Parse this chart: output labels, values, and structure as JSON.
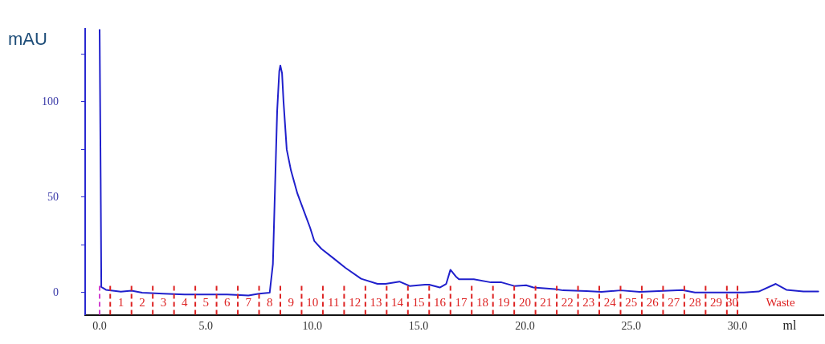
{
  "chart_data": {
    "type": "line",
    "xlabel": "ml",
    "ylabel": "mAU",
    "x": [
      0.0,
      0.05,
      0.08,
      0.3,
      1.0,
      1.5,
      2.0,
      3.0,
      4.0,
      5.0,
      6.0,
      7.0,
      7.5,
      8.0,
      8.15,
      8.25,
      8.35,
      8.45,
      8.5,
      8.58,
      8.65,
      8.8,
      9.0,
      9.3,
      9.6,
      9.9,
      10.1,
      10.43,
      11.0,
      11.56,
      12.3,
      13.07,
      13.45,
      14.1,
      14.58,
      15.3,
      15.5,
      16.0,
      16.3,
      16.5,
      16.75,
      16.9,
      17.6,
      18.4,
      18.9,
      19.5,
      20.06,
      20.4,
      21.4,
      21.8,
      22.9,
      23.6,
      24.5,
      25.4,
      27.4,
      28.0,
      30.3,
      31.0,
      31.8,
      32.3,
      33.1,
      33.8
    ],
    "series": [
      {
        "color": "#2020cc",
        "values": [
          138,
          60,
          3,
          1.5,
          0.5,
          1,
          0,
          -0.5,
          -1,
          -1,
          -1,
          -1.5,
          -0.5,
          0,
          15,
          55,
          95,
          116,
          119,
          115,
          100,
          75,
          64,
          52,
          43,
          34,
          27,
          23,
          18,
          13,
          7.3,
          4.6,
          4.6,
          5.8,
          3.5,
          4.2,
          4.2,
          2.7,
          4.6,
          12,
          8.5,
          7,
          7,
          5.4,
          5.4,
          3.5,
          3.9,
          2.7,
          1.9,
          1.2,
          0.8,
          0.4,
          1.2,
          0.4,
          1.4,
          0.1,
          0.1,
          0.6,
          4.6,
          1.5,
          0.6,
          0.6
        ]
      }
    ],
    "xlim": [
      -0.68,
      34.04
    ],
    "ylim": [
      -11.6,
      138
    ],
    "xticks": [
      {
        "value": 0,
        "label": "0.0"
      },
      {
        "value": 5,
        "label": "5.0"
      },
      {
        "value": 10,
        "label": "10.0"
      },
      {
        "value": 15,
        "label": "15.0"
      },
      {
        "value": 20,
        "label": "20.0"
      },
      {
        "value": 25,
        "label": "25.0"
      },
      {
        "value": 30,
        "label": "30.0"
      }
    ],
    "yticks": [
      0,
      {
        "value": 25,
        "label": null
      },
      50,
      {
        "value": 75,
        "label": null
      },
      100,
      {
        "value": 125,
        "label": null
      }
    ],
    "grid": false,
    "legend": false,
    "marker": "none",
    "line_style": "solid",
    "ref_lines": [
      {
        "axis": "x",
        "value": 0,
        "color": "#d040d0",
        "line_style": "dashed"
      },
      {
        "axis": "x",
        "value": 0.5,
        "label": "1",
        "color": "#dd2222",
        "line_style": "dashed"
      },
      {
        "axis": "x",
        "value": 1.5,
        "label": "2",
        "color": "#dd2222",
        "line_style": "dashed"
      },
      {
        "axis": "x",
        "value": 2.5,
        "label": "3",
        "color": "#dd2222",
        "line_style": "dashed"
      },
      {
        "axis": "x",
        "value": 3.5,
        "label": "4",
        "color": "#dd2222",
        "line_style": "dashed"
      },
      {
        "axis": "x",
        "value": 4.5,
        "label": "5",
        "color": "#dd2222",
        "line_style": "dashed"
      },
      {
        "axis": "x",
        "value": 5.5,
        "label": "6",
        "color": "#dd2222",
        "line_style": "dashed"
      },
      {
        "axis": "x",
        "value": 6.5,
        "label": "7",
        "color": "#dd2222",
        "line_style": "dashed"
      },
      {
        "axis": "x",
        "value": 7.5,
        "label": "8",
        "color": "#dd2222",
        "line_style": "dashed"
      },
      {
        "axis": "x",
        "value": 8.5,
        "label": "9",
        "color": "#dd2222",
        "line_style": "dashed"
      },
      {
        "axis": "x",
        "value": 9.5,
        "label": "10",
        "color": "#dd2222",
        "line_style": "dashed"
      },
      {
        "axis": "x",
        "value": 10.5,
        "label": "11",
        "color": "#dd2222",
        "line_style": "dashed"
      },
      {
        "axis": "x",
        "value": 11.5,
        "label": "12",
        "color": "#dd2222",
        "line_style": "dashed"
      },
      {
        "axis": "x",
        "value": 12.5,
        "label": "13",
        "color": "#dd2222",
        "line_style": "dashed"
      },
      {
        "axis": "x",
        "value": 13.5,
        "label": "14",
        "color": "#dd2222",
        "line_style": "dashed"
      },
      {
        "axis": "x",
        "value": 14.5,
        "label": "15",
        "color": "#dd2222",
        "line_style": "dashed"
      },
      {
        "axis": "x",
        "value": 15.5,
        "label": "16",
        "color": "#dd2222",
        "line_style": "dashed"
      },
      {
        "axis": "x",
        "value": 16.5,
        "label": "17",
        "color": "#dd2222",
        "line_style": "dashed"
      },
      {
        "axis": "x",
        "value": 17.5,
        "label": "18",
        "color": "#dd2222",
        "line_style": "dashed"
      },
      {
        "axis": "x",
        "value": 18.5,
        "label": "19",
        "color": "#dd2222",
        "line_style": "dashed"
      },
      {
        "axis": "x",
        "value": 19.5,
        "label": "20",
        "color": "#dd2222",
        "line_style": "dashed"
      },
      {
        "axis": "x",
        "value": 20.5,
        "label": "21",
        "color": "#dd2222",
        "line_style": "dashed"
      },
      {
        "axis": "x",
        "value": 21.5,
        "label": "22",
        "color": "#dd2222",
        "line_style": "dashed"
      },
      {
        "axis": "x",
        "value": 22.5,
        "label": "23",
        "color": "#dd2222",
        "line_style": "dashed"
      },
      {
        "axis": "x",
        "value": 23.5,
        "label": "24",
        "color": "#dd2222",
        "line_style": "dashed"
      },
      {
        "axis": "x",
        "value": 24.5,
        "label": "25",
        "color": "#dd2222",
        "line_style": "dashed"
      },
      {
        "axis": "x",
        "value": 25.5,
        "label": "26",
        "color": "#dd2222",
        "line_style": "dashed"
      },
      {
        "axis": "x",
        "value": 26.5,
        "label": "27",
        "color": "#dd2222",
        "line_style": "dashed"
      },
      {
        "axis": "x",
        "value": 27.5,
        "label": "28",
        "color": "#dd2222",
        "line_style": "dashed"
      },
      {
        "axis": "x",
        "value": 28.5,
        "label": "29",
        "color": "#dd2222",
        "line_style": "dashed"
      },
      {
        "axis": "x",
        "value": 29.5,
        "label": "30",
        "color": "#dd2222",
        "line_style": "dashed"
      },
      {
        "axis": "x",
        "value": 30.0,
        "label": "Waste",
        "color": "#dd2222",
        "line_style": "dashed"
      }
    ]
  }
}
